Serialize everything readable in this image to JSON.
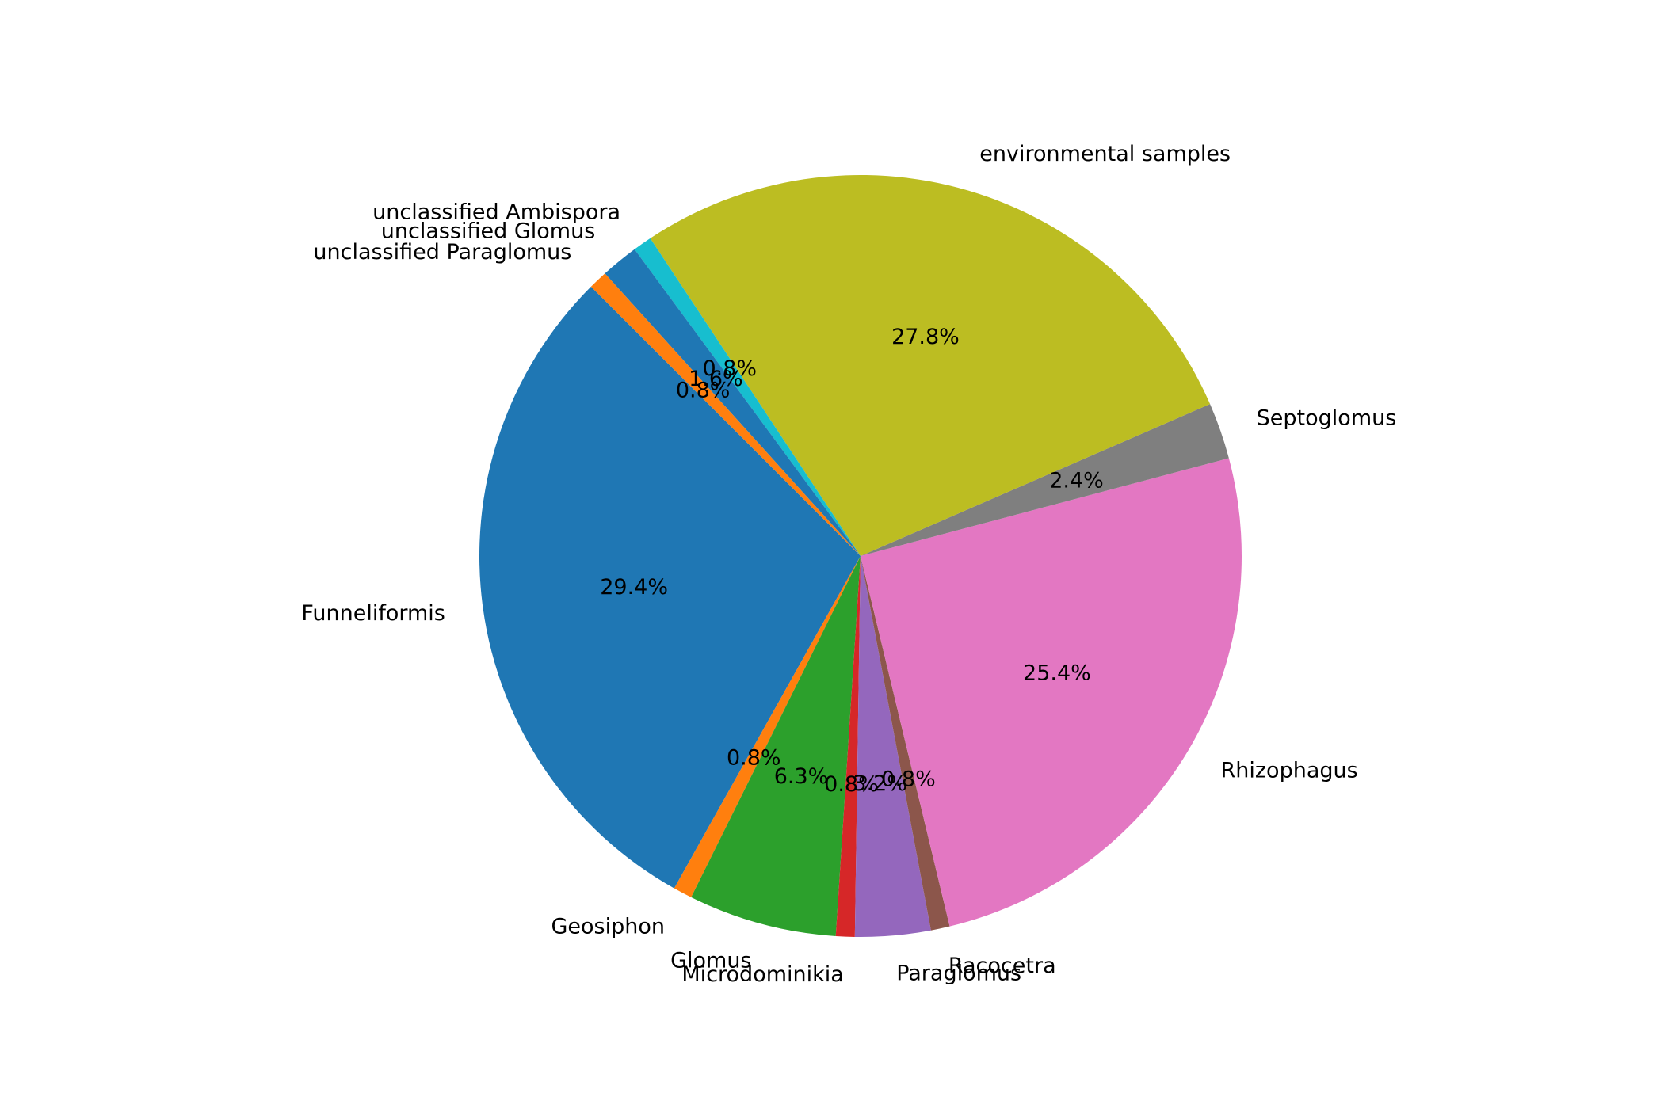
{
  "chart_data": {
    "type": "pie",
    "start_angle_deg": 135,
    "direction": "counterclockwise",
    "slices": [
      {
        "label": "Funneliformis",
        "percent": 29.4,
        "pct_label": "29.4%",
        "color": "#1f77b4"
      },
      {
        "label": "Geosiphon",
        "percent": 0.8,
        "pct_label": "0.8%",
        "color": "#ff7f0e"
      },
      {
        "label": "Glomus",
        "percent": 6.3,
        "pct_label": "6.3%",
        "color": "#2ca02c"
      },
      {
        "label": "Microdominikia",
        "percent": 0.8,
        "pct_label": "0.8%",
        "color": "#d62728"
      },
      {
        "label": "Paraglomus",
        "percent": 3.2,
        "pct_label": "3.2%",
        "color": "#9467bd"
      },
      {
        "label": "Racocetra",
        "percent": 0.8,
        "pct_label": "0.8%",
        "color": "#8c564b"
      },
      {
        "label": "Rhizophagus",
        "percent": 25.4,
        "pct_label": "25.4%",
        "color": "#e377c2"
      },
      {
        "label": "Septoglomus",
        "percent": 2.4,
        "pct_label": "2.4%",
        "color": "#7f7f7f"
      },
      {
        "label": "environmental samples",
        "percent": 27.8,
        "pct_label": "27.8%",
        "color": "#bcbd22"
      },
      {
        "label": "unclassified Ambispora",
        "percent": 0.8,
        "pct_label": "0.8%",
        "color": "#17becf"
      },
      {
        "label": "unclassified Glomus",
        "percent": 1.6,
        "pct_label": "1.6%",
        "color": "#1f77b4"
      },
      {
        "label": "unclassified Paraglomus",
        "percent": 0.8,
        "pct_label": "0.8%",
        "color": "#ff7f0e"
      }
    ]
  }
}
